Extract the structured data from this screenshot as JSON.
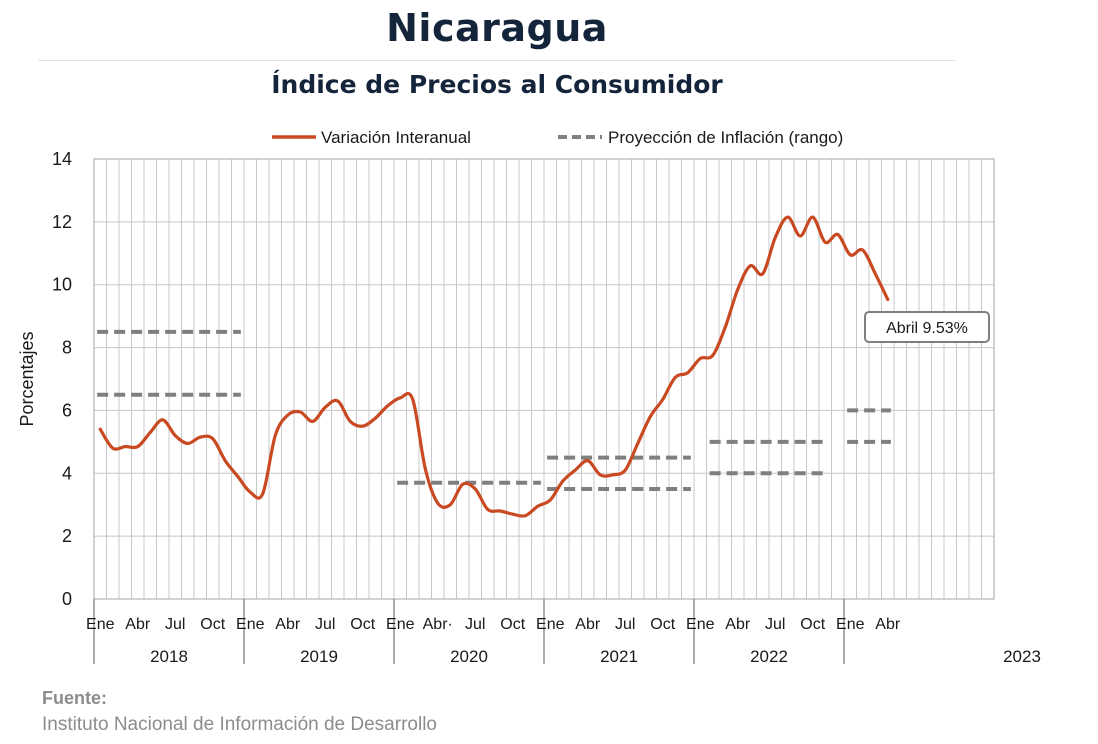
{
  "header": {
    "title": "Nicaragua",
    "subtitle": "Índice de Precios al Consumidor"
  },
  "footer": {
    "source_label": "Fuente:",
    "source_text": "Instituto Nacional de Información de  Desarrollo"
  },
  "colors": {
    "series": "#c94a22",
    "projection": "#7f7f7f",
    "grid": "#c8c8c8",
    "title": "#14243a"
  },
  "chart_data": {
    "type": "line",
    "ylabel": "Porcentajes",
    "ylim": [
      0,
      14
    ],
    "yticks": [
      "0",
      "2",
      "4",
      "6",
      "8",
      "10",
      "12",
      "14"
    ],
    "grid": true,
    "legend_position": "top",
    "x_month_labels": [
      "Ene",
      "Abr",
      "Jul",
      "Oct",
      "Ene",
      "Abr",
      "Jul",
      "Oct",
      "Ene",
      "Abr·",
      "Jul",
      "Oct",
      "Ene",
      "Abr",
      "Jul",
      "Oct",
      "Ene",
      "Abr",
      "Jul",
      "Oct",
      "Ene",
      "Abr"
    ],
    "x_years": [
      "2018",
      "2019",
      "2020",
      "2021",
      "2022",
      "2023"
    ],
    "series": [
      {
        "name": "Variación Interanual",
        "x": [
          "2018-01",
          "2018-02",
          "2018-03",
          "2018-04",
          "2018-05",
          "2018-06",
          "2018-07",
          "2018-08",
          "2018-09",
          "2018-10",
          "2018-11",
          "2018-12",
          "2019-01",
          "2019-02",
          "2019-03",
          "2019-04",
          "2019-05",
          "2019-06",
          "2019-07",
          "2019-08",
          "2019-09",
          "2019-10",
          "2019-11",
          "2019-12",
          "2020-01",
          "2020-02",
          "2020-03",
          "2020-04",
          "2020-05",
          "2020-06",
          "2020-07",
          "2020-08",
          "2020-09",
          "2020-10",
          "2020-11",
          "2020-12",
          "2021-01",
          "2021-02",
          "2021-03",
          "2021-04",
          "2021-05",
          "2021-06",
          "2021-07",
          "2021-08",
          "2021-09",
          "2021-10",
          "2021-11",
          "2021-12",
          "2022-01",
          "2022-02",
          "2022-03",
          "2022-04",
          "2022-05",
          "2022-06",
          "2022-07",
          "2022-08",
          "2022-09",
          "2022-10",
          "2022-11",
          "2022-12",
          "2023-01",
          "2023-02",
          "2023-03",
          "2023-04"
        ],
        "values": [
          5.4,
          4.8,
          4.85,
          4.85,
          5.3,
          5.7,
          5.2,
          4.95,
          5.15,
          5.1,
          4.4,
          3.9,
          3.4,
          3.35,
          5.2,
          5.85,
          5.95,
          5.65,
          6.1,
          6.3,
          5.65,
          5.5,
          5.75,
          6.15,
          6.4,
          6.35,
          4.15,
          3.05,
          3.0,
          3.65,
          3.5,
          2.85,
          2.8,
          2.7,
          2.65,
          2.95,
          3.15,
          3.75,
          4.1,
          4.4,
          3.95,
          3.95,
          4.1,
          4.95,
          5.8,
          6.35,
          7.05,
          7.2,
          7.65,
          7.75,
          8.65,
          9.85,
          10.6,
          10.35,
          11.5,
          12.15,
          11.55,
          12.15,
          11.35,
          11.6,
          10.95,
          11.1,
          10.35,
          9.53
        ]
      }
    ],
    "projections": [
      {
        "name": "Proyección de Inflación (rango)",
        "year": "2018",
        "x": [
          "2018-01",
          "2018-12"
        ],
        "low": 6.5,
        "high": 8.5
      },
      {
        "name": "Proyección de Inflación (rango)",
        "year": "2020",
        "x": [
          "2020-01",
          "2020-12"
        ],
        "low": 3.7,
        "high": 3.7
      },
      {
        "name": "Proyección de Inflación (rango)",
        "year": "2021",
        "x": [
          "2021-01",
          "2021-12"
        ],
        "low": 3.5,
        "high": 4.5
      },
      {
        "name": "Proyección de Inflación (rango)",
        "year": "2022",
        "x": [
          "2022-02",
          "2022-11"
        ],
        "low": 4.0,
        "high": 5.0
      },
      {
        "name": "Proyección de Inflación (rango)",
        "year": "2023",
        "x": [
          "2023-01",
          "2023-04"
        ],
        "low": 5.0,
        "high": 6.0
      }
    ],
    "annotation": {
      "text": "Abril 9.53%",
      "x": "2023-04",
      "y": 9.53
    }
  }
}
